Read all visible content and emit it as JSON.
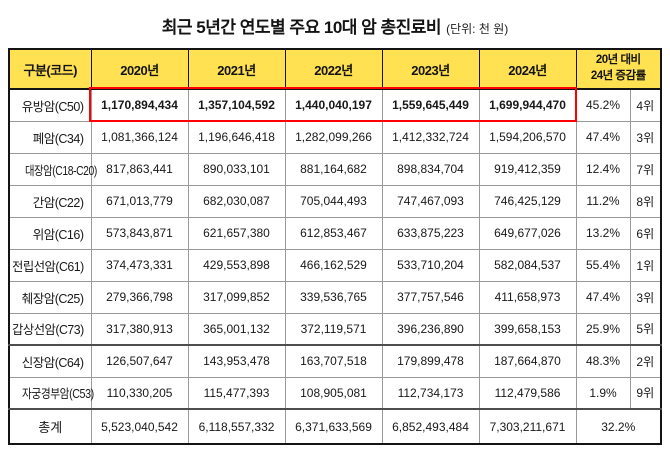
{
  "chart_data": {
    "type": "table",
    "title": "최근 5년간 연도별 주요 10대 암 총진료비",
    "unit_label": "(단위: 천 원)",
    "corner_header": "구분(코드)",
    "year_headers": [
      "2020년",
      "2021년",
      "2022년",
      "2023년",
      "2024년"
    ],
    "change_header": [
      "20년 대비",
      "24년 증감률"
    ],
    "rows": [
      {
        "label": "유방암(C50)",
        "values": [
          "1,170,894,434",
          "1,357,104,592",
          "1,440,040,197",
          "1,559,645,449",
          "1,699,944,470"
        ],
        "change": "45.2%",
        "rank": "4위",
        "highlighted": true
      },
      {
        "label": "폐암(C34)",
        "values": [
          "1,081,366,124",
          "1,196,646,418",
          "1,282,099,266",
          "1,412,332,724",
          "1,594,206,570"
        ],
        "change": "47.4%",
        "rank": "3위",
        "highlighted": false
      },
      {
        "label": "대장암(C18-C20)",
        "values": [
          "817,863,441",
          "890,033,101",
          "881,164,682",
          "898,834,704",
          "919,412,359"
        ],
        "change": "12.4%",
        "rank": "7위",
        "highlighted": false
      },
      {
        "label": "간암(C22)",
        "values": [
          "671,013,779",
          "682,030,087",
          "705,044,493",
          "747,467,093",
          "746,425,129"
        ],
        "change": "11.2%",
        "rank": "8위",
        "highlighted": false
      },
      {
        "label": "위암(C16)",
        "values": [
          "573,843,871",
          "621,657,380",
          "612,853,467",
          "633,875,223",
          "649,677,026"
        ],
        "change": "13.2%",
        "rank": "6위",
        "highlighted": false
      },
      {
        "label": "전립선암(C61)",
        "values": [
          "374,473,331",
          "429,553,898",
          "466,162,529",
          "533,710,204",
          "582,084,537"
        ],
        "change": "55.4%",
        "rank": "1위",
        "highlighted": false
      },
      {
        "label": "췌장암(C25)",
        "values": [
          "279,366,798",
          "317,099,852",
          "339,536,765",
          "377,757,546",
          "411,658,973"
        ],
        "change": "47.4%",
        "rank": "3위",
        "highlighted": false
      },
      {
        "label": "갑상선암(C73)",
        "values": [
          "317,380,913",
          "365,001,132",
          "372,119,571",
          "396,236,890",
          "399,658,153"
        ],
        "change": "25.9%",
        "rank": "5위",
        "highlighted": false
      },
      {
        "label": "신장암(C64)",
        "values": [
          "126,507,647",
          "143,953,478",
          "163,707,518",
          "179,899,478",
          "187,664,870"
        ],
        "change": "48.3%",
        "rank": "2위",
        "highlighted": false
      },
      {
        "label": "자궁경부암(C53)",
        "values": [
          "110,330,205",
          "115,477,393",
          "108,905,081",
          "112,734,173",
          "112,479,586"
        ],
        "change": "1.9%",
        "rank": "9위",
        "highlighted": false
      }
    ],
    "total_row": {
      "label": "총계",
      "values": [
        "5,523,040,542",
        "6,118,557,332",
        "6,371,633,569",
        "6,852,493,484",
        "7,303,211,671"
      ],
      "change": "32.2%"
    }
  },
  "colors": {
    "header_bg": "#FFE152",
    "highlight_border": "#FF0000"
  }
}
